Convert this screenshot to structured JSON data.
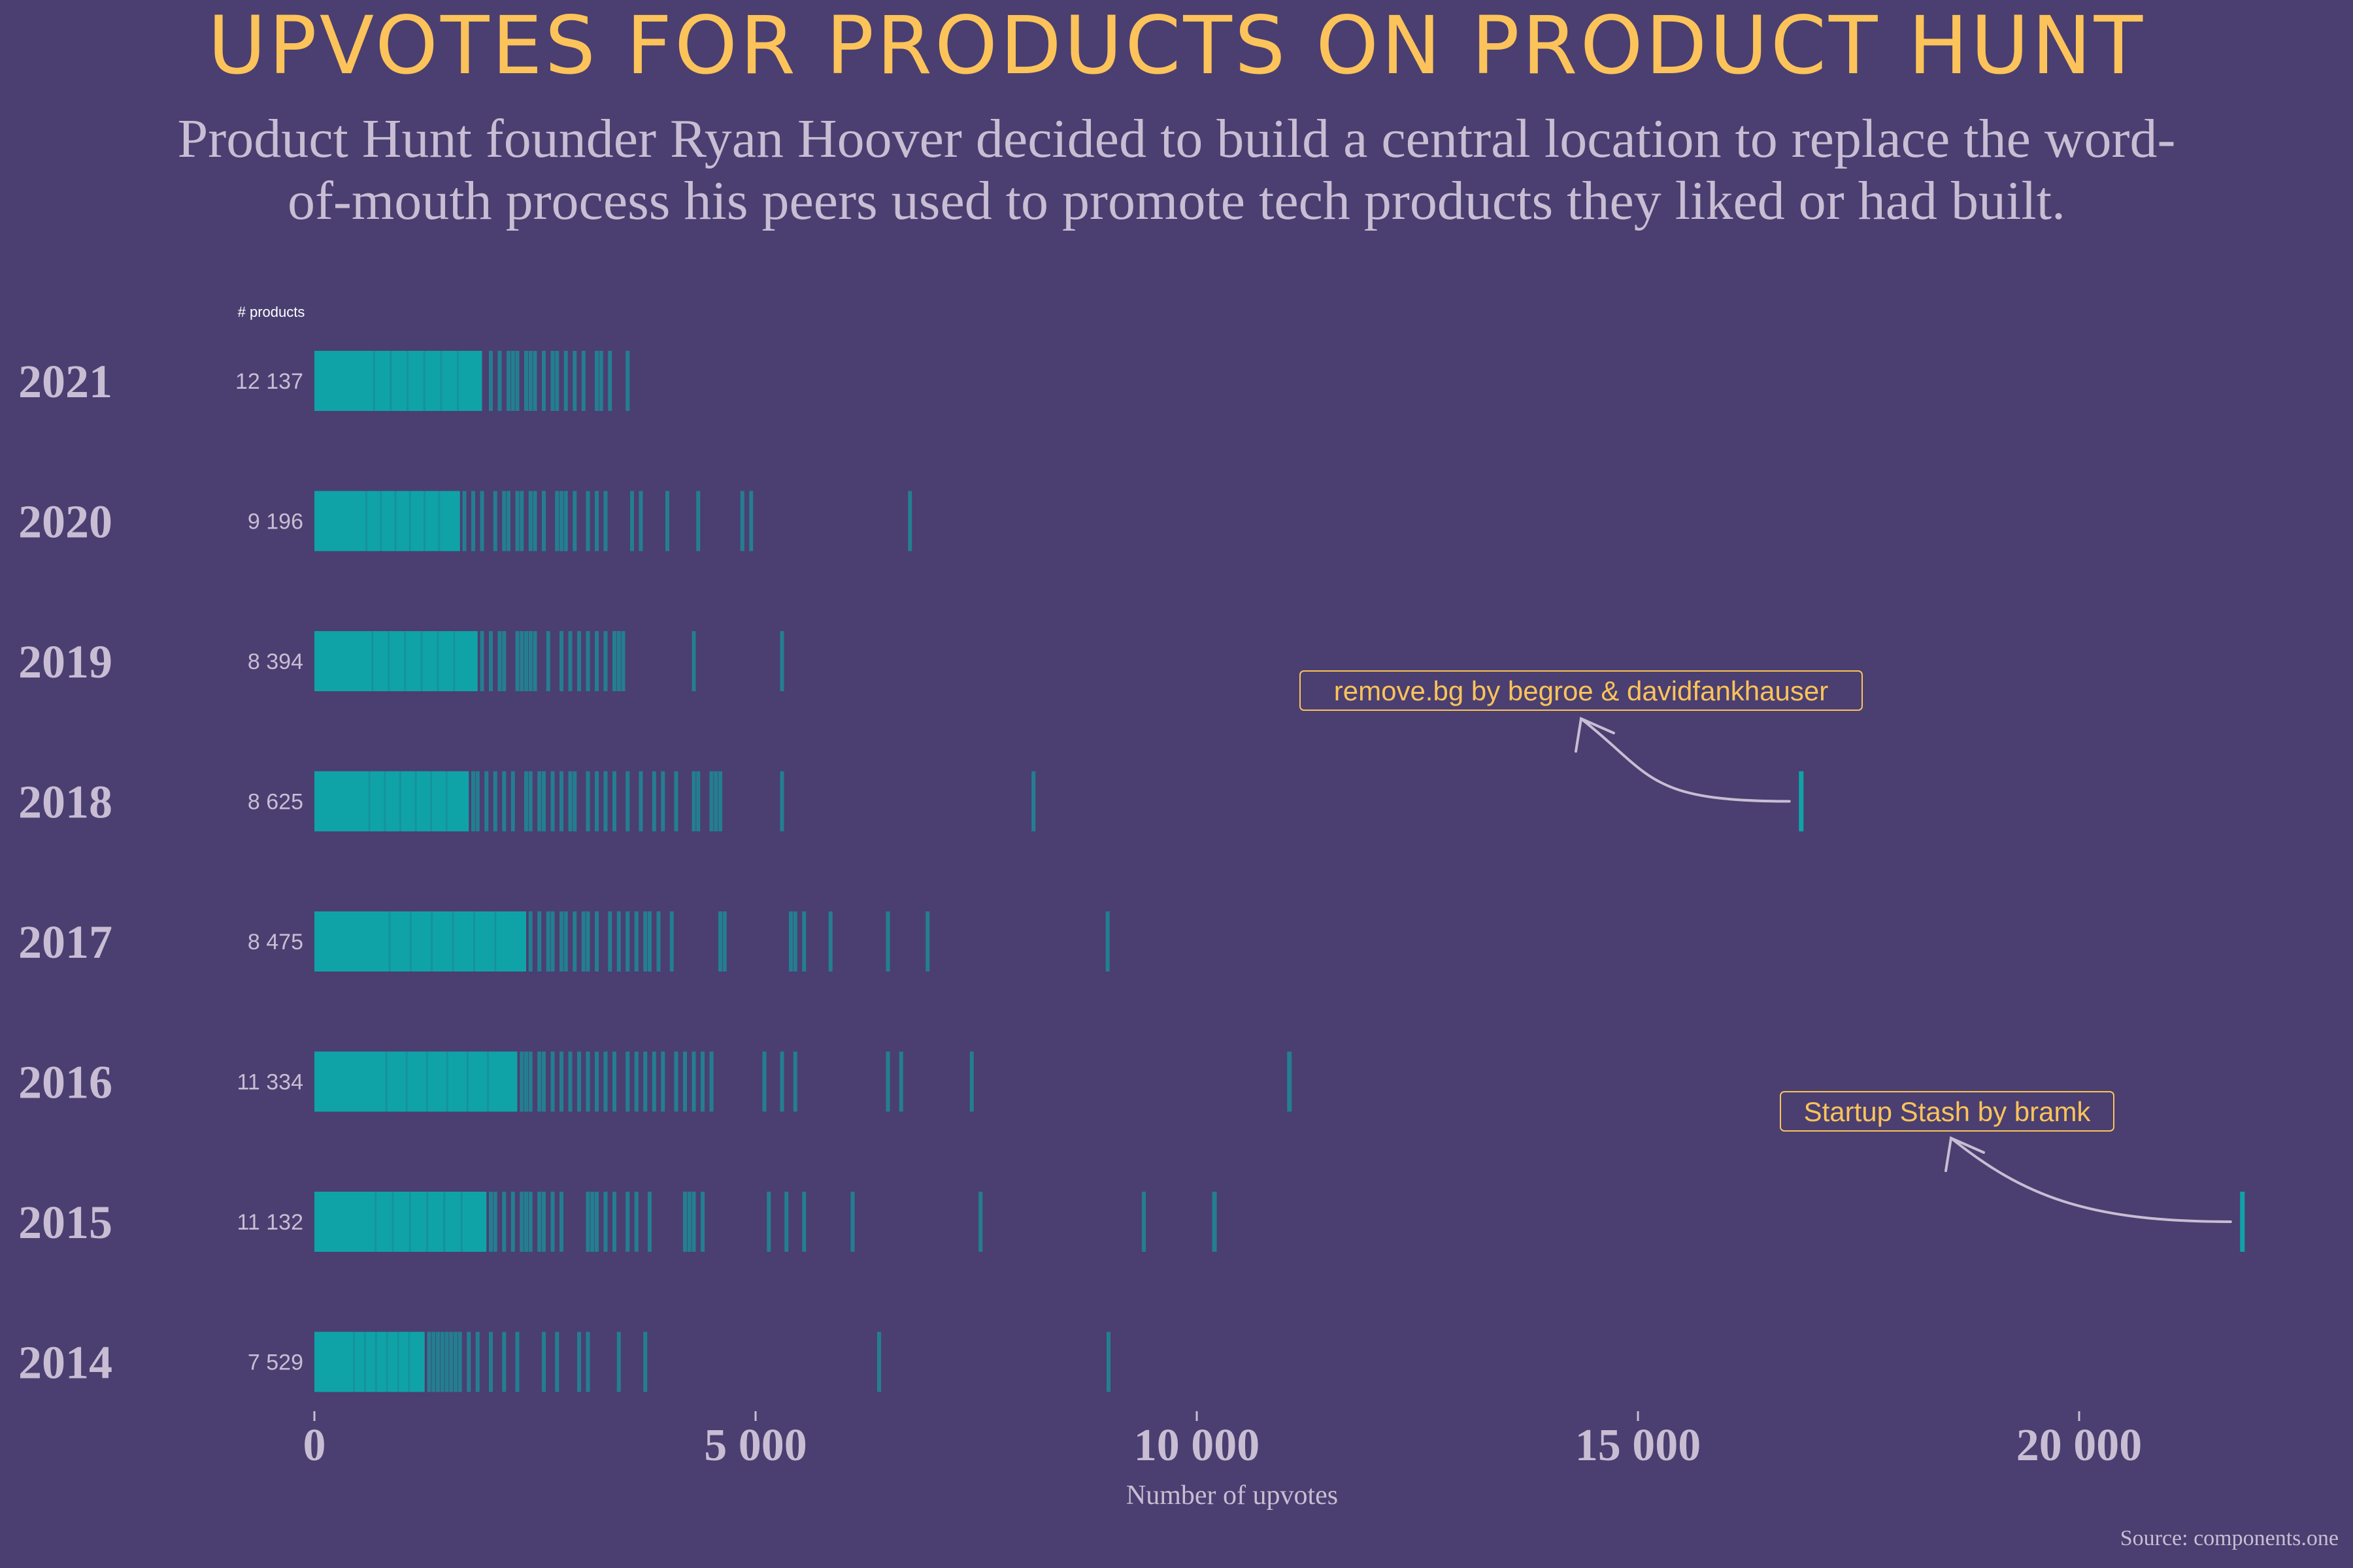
{
  "chart_data": {
    "type": "strip",
    "title": "UPVOTES FOR PRODUCTS ON PRODUCT HUNT",
    "subtitle_lines": [
      "Product Hunt founder Ryan Hoover decided to build a central location to replace the word-",
      "of-mouth process his peers used to promote tech products they liked or had built."
    ],
    "count_header": "# products",
    "xlabel": "Number of upvotes",
    "source": "Source: components.one",
    "xlim": [
      -350,
      23300
    ],
    "xticks": [
      0,
      5000,
      10000,
      15000,
      20000
    ],
    "xtick_labels": [
      "0",
      "5 000",
      "10 000",
      "15 000",
      "20 000"
    ],
    "colors": {
      "background": "#4a3f70",
      "bar": "#0fa3a8",
      "title": "#fcc35a",
      "text": "#c8bdd3"
    },
    "rows": [
      {
        "year": "2021",
        "count": "12 137",
        "dense_max": 1900,
        "outliers": [
          2000,
          2100,
          2200,
          2250,
          2300,
          2400,
          2450,
          2500,
          2600,
          2700,
          2750,
          2850,
          2950,
          3050,
          3200,
          3250,
          3350,
          3550
        ]
      },
      {
        "year": "2020",
        "count": "9 196",
        "dense_max": 1650,
        "outliers": [
          1700,
          1800,
          1900,
          2050,
          2150,
          2200,
          2300,
          2350,
          2450,
          2500,
          2600,
          2750,
          2800,
          2850,
          2950,
          3100,
          3200,
          3300,
          3600,
          3700,
          4000,
          4350,
          4850,
          4950,
          6750
        ]
      },
      {
        "year": "2019",
        "count": "8 394",
        "dense_max": 1850,
        "outliers": [
          1900,
          2000,
          2100,
          2150,
          2300,
          2350,
          2400,
          2450,
          2500,
          2650,
          2800,
          2900,
          3000,
          3100,
          3200,
          3300,
          3400,
          3450,
          3500,
          4300,
          5300
        ]
      },
      {
        "year": "2018",
        "count": "8 625",
        "dense_max": 1750,
        "outliers": [
          1800,
          1850,
          1950,
          2050,
          2150,
          2250,
          2400,
          2450,
          2550,
          2600,
          2700,
          2800,
          2900,
          2950,
          3100,
          3200,
          3300,
          3400,
          3550,
          3700,
          3850,
          3950,
          4100,
          4300,
          4350,
          4500,
          4550,
          4600,
          5300,
          8150,
          16850
        ]
      },
      {
        "year": "2017",
        "count": "8 475",
        "dense_max": 2400,
        "outliers": [
          2450,
          2550,
          2650,
          2700,
          2800,
          2850,
          2950,
          3050,
          3100,
          3200,
          3350,
          3450,
          3550,
          3650,
          3750,
          3800,
          3900,
          4050,
          4600,
          4650,
          5400,
          5450,
          5550,
          5850,
          6500,
          6950,
          8990
        ]
      },
      {
        "year": "2016",
        "count": "11 334",
        "dense_max": 2300,
        "outliers": [
          2350,
          2400,
          2450,
          2550,
          2600,
          2700,
          2800,
          2900,
          3000,
          3100,
          3200,
          3300,
          3400,
          3550,
          3650,
          3750,
          3850,
          3950,
          4100,
          4200,
          4300,
          4400,
          4500,
          5100,
          5300,
          5450,
          6500,
          6650,
          7450,
          11050
        ]
      },
      {
        "year": "2015",
        "count": "11 132",
        "dense_max": 1950,
        "outliers": [
          2000,
          2050,
          2150,
          2250,
          2350,
          2400,
          2450,
          2550,
          2600,
          2700,
          2800,
          3100,
          3150,
          3200,
          3300,
          3400,
          3550,
          3650,
          3800,
          4200,
          4250,
          4300,
          4400,
          5150,
          5350,
          5550,
          6100,
          7550,
          9400,
          10200,
          21850
        ]
      },
      {
        "year": "2014",
        "count": "7 529",
        "dense_max": 1250,
        "outliers": [
          1300,
          1350,
          1400,
          1450,
          1500,
          1550,
          1600,
          1650,
          1750,
          1850,
          2000,
          2150,
          2300,
          2600,
          2750,
          3000,
          3100,
          3450,
          3750,
          6400,
          9000
        ]
      }
    ],
    "annotations": [
      {
        "text": "remove.bg by begroe & davidfankhauser",
        "year": "2018",
        "value": 16850
      },
      {
        "text": "Startup Stash by bramk",
        "year": "2015",
        "value": 21850
      }
    ]
  }
}
